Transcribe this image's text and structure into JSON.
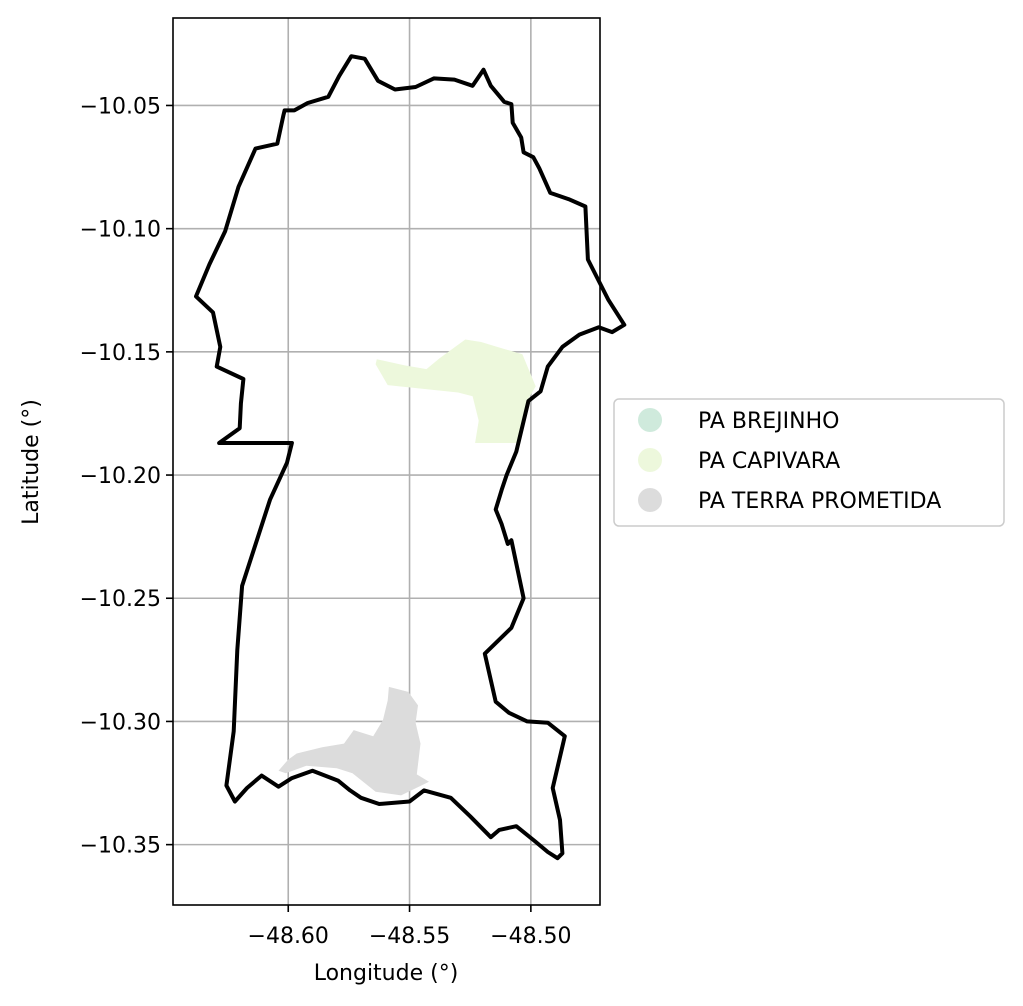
{
  "chart_data": {
    "type": "map",
    "xlabel": "Longitude (°)",
    "ylabel": "Latitude (°)",
    "xlim": [
      -48.6475,
      -48.4715
    ],
    "ylim": [
      -10.3745,
      -10.0145
    ],
    "x_ticks": [
      -48.6,
      -48.55,
      -48.5
    ],
    "x_tick_labels": [
      "−48.60",
      "−48.55",
      "−48.50"
    ],
    "y_ticks": [
      -10.05,
      -10.1,
      -10.15,
      -10.2,
      -10.25,
      -10.3,
      -10.35
    ],
    "y_tick_labels": [
      "−10.05",
      "−10.10",
      "−10.15",
      "−10.20",
      "−10.25",
      "−10.30",
      "−10.35"
    ],
    "grid": true,
    "legend_position": "right",
    "boundary": {
      "color": "#000000",
      "coords": [
        [
          -48.5975,
          -10.052
        ],
        [
          -48.592,
          -10.049
        ],
        [
          -48.5835,
          -10.0465
        ],
        [
          -48.579,
          -10.038
        ],
        [
          -48.574,
          -10.03
        ],
        [
          -48.5685,
          -10.031
        ],
        [
          -48.563,
          -10.04
        ],
        [
          -48.556,
          -10.0435
        ],
        [
          -48.5475,
          -10.0425
        ],
        [
          -48.54,
          -10.039
        ],
        [
          -48.5315,
          -10.0395
        ],
        [
          -48.524,
          -10.042
        ],
        [
          -48.5195,
          -10.0355
        ],
        [
          -48.5165,
          -10.042
        ],
        [
          -48.511,
          -10.0485
        ],
        [
          -48.508,
          -10.0495
        ],
        [
          -48.5075,
          -10.057
        ],
        [
          -48.504,
          -10.063
        ],
        [
          -48.503,
          -10.069
        ],
        [
          -48.499,
          -10.071
        ],
        [
          -48.4965,
          -10.0755
        ],
        [
          -48.492,
          -10.0855
        ],
        [
          -48.4845,
          -10.088
        ],
        [
          -48.4775,
          -10.091
        ],
        [
          -48.4765,
          -10.1125
        ],
        [
          -48.468,
          -10.129
        ],
        [
          -48.4615,
          -10.139
        ],
        [
          -48.4665,
          -10.142
        ],
        [
          -48.472,
          -10.14
        ],
        [
          -48.48,
          -10.143
        ],
        [
          -48.487,
          -10.148
        ],
        [
          -48.493,
          -10.156
        ],
        [
          -48.496,
          -10.166
        ],
        [
          -48.501,
          -10.17
        ],
        [
          -48.506,
          -10.1905
        ],
        [
          -48.51,
          -10.2
        ],
        [
          -48.512,
          -10.206
        ],
        [
          -48.5145,
          -10.214
        ],
        [
          -48.512,
          -10.22
        ],
        [
          -48.5095,
          -10.228
        ],
        [
          -48.508,
          -10.2265
        ],
        [
          -48.503,
          -10.25
        ],
        [
          -48.508,
          -10.262
        ],
        [
          -48.519,
          -10.2725
        ],
        [
          -48.5145,
          -10.292
        ],
        [
          -48.509,
          -10.2965
        ],
        [
          -48.5015,
          -10.3
        ],
        [
          -48.493,
          -10.3005
        ],
        [
          -48.486,
          -10.306
        ],
        [
          -48.491,
          -10.327
        ],
        [
          -48.488,
          -10.34
        ],
        [
          -48.487,
          -10.3535
        ],
        [
          -48.489,
          -10.3555
        ],
        [
          -48.493,
          -10.353
        ],
        [
          -48.4985,
          -10.3485
        ],
        [
          -48.506,
          -10.3425
        ],
        [
          -48.513,
          -10.344
        ],
        [
          -48.5165,
          -10.347
        ],
        [
          -48.525,
          -10.3385
        ],
        [
          -48.533,
          -10.331
        ],
        [
          -48.544,
          -10.328
        ],
        [
          -48.55,
          -10.3325
        ],
        [
          -48.5625,
          -10.3335
        ],
        [
          -48.57,
          -10.331
        ],
        [
          -48.5745,
          -10.328
        ],
        [
          -48.5795,
          -10.324
        ],
        [
          -48.59,
          -10.32
        ],
        [
          -48.5985,
          -10.323
        ],
        [
          -48.604,
          -10.3265
        ],
        [
          -48.611,
          -10.322
        ],
        [
          -48.617,
          -10.327
        ],
        [
          -48.622,
          -10.3325
        ],
        [
          -48.6255,
          -10.326
        ],
        [
          -48.6225,
          -10.304
        ],
        [
          -48.621,
          -10.271
        ],
        [
          -48.619,
          -10.245
        ],
        [
          -48.6075,
          -10.21
        ],
        [
          -48.6005,
          -10.195
        ],
        [
          -48.5985,
          -10.187
        ],
        [
          -48.6285,
          -10.187
        ],
        [
          -48.62,
          -10.181
        ],
        [
          -48.6195,
          -10.171
        ],
        [
          -48.6185,
          -10.161
        ],
        [
          -48.6295,
          -10.156
        ],
        [
          -48.628,
          -10.148
        ],
        [
          -48.631,
          -10.134
        ],
        [
          -48.638,
          -10.1275
        ],
        [
          -48.6325,
          -10.1145
        ],
        [
          -48.626,
          -10.101
        ],
        [
          -48.6205,
          -10.083
        ],
        [
          -48.6135,
          -10.0675
        ],
        [
          -48.6045,
          -10.0655
        ],
        [
          -48.602,
          -10.054
        ],
        [
          -48.6015,
          -10.052
        ],
        [
          -48.5975,
          -10.052
        ]
      ]
    },
    "series": [
      {
        "name": "PA BREJINHO",
        "color": "#cfeadc",
        "coords": []
      },
      {
        "name": "PA CAPIVARA",
        "color": "#edf8dc",
        "coords": [
          [
            -48.5635,
            -10.153
          ],
          [
            -48.552,
            -10.1555
          ],
          [
            -48.543,
            -10.157
          ],
          [
            -48.5375,
            -10.1525
          ],
          [
            -48.527,
            -10.145
          ],
          [
            -48.5205,
            -10.146
          ],
          [
            -48.512,
            -10.1485
          ],
          [
            -48.5035,
            -10.151
          ],
          [
            -48.498,
            -10.164
          ],
          [
            -48.501,
            -10.169
          ],
          [
            -48.5045,
            -10.187
          ],
          [
            -48.523,
            -10.187
          ],
          [
            -48.5215,
            -10.178
          ],
          [
            -48.524,
            -10.168
          ],
          [
            -48.53,
            -10.1665
          ],
          [
            -48.559,
            -10.1635
          ],
          [
            -48.564,
            -10.155
          ],
          [
            -48.5635,
            -10.153
          ]
        ]
      },
      {
        "name": "PA TERRA PROMETIDA",
        "color": "#dcdcdc",
        "coords": [
          [
            -48.559,
            -10.2915
          ],
          [
            -48.5585,
            -10.286
          ],
          [
            -48.5505,
            -10.288
          ],
          [
            -48.5465,
            -10.2935
          ],
          [
            -48.5475,
            -10.3005
          ],
          [
            -48.5455,
            -10.309
          ],
          [
            -48.547,
            -10.3215
          ],
          [
            -48.542,
            -10.3245
          ],
          [
            -48.5535,
            -10.33
          ],
          [
            -48.564,
            -10.3285
          ],
          [
            -48.5735,
            -10.321
          ],
          [
            -48.58,
            -10.319
          ],
          [
            -48.5925,
            -10.318
          ],
          [
            -48.601,
            -10.321
          ],
          [
            -48.604,
            -10.32
          ],
          [
            -48.6,
            -10.3155
          ],
          [
            -48.5965,
            -10.313
          ],
          [
            -48.586,
            -10.3105
          ],
          [
            -48.577,
            -10.309
          ],
          [
            -48.573,
            -10.3035
          ],
          [
            -48.565,
            -10.306
          ],
          [
            -48.561,
            -10.2995
          ],
          [
            -48.559,
            -10.2915
          ]
        ]
      }
    ]
  }
}
